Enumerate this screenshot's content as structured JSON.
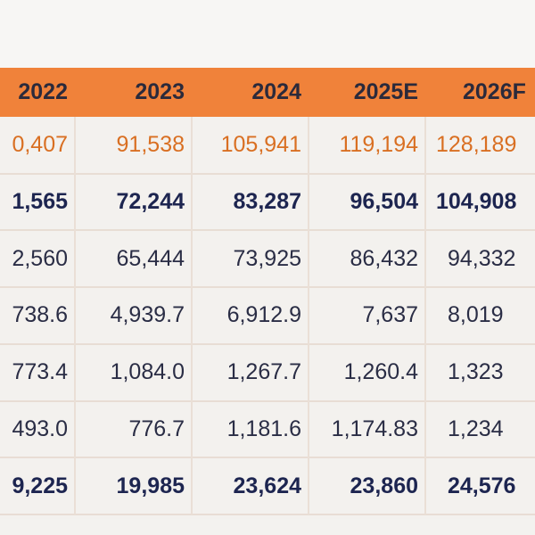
{
  "table": {
    "headers": [
      "2022",
      "2023",
      "2024",
      "2025E",
      "2026F"
    ],
    "rows": [
      {
        "style": "orange",
        "cells": [
          "0,407",
          "91,538",
          "105,941",
          "119,194",
          "128,189"
        ]
      },
      {
        "style": "navy",
        "cells": [
          "1,565",
          "72,244",
          "83,287",
          "96,504",
          "104,908"
        ]
      },
      {
        "style": "dark",
        "cells": [
          "2,560",
          "65,444",
          "73,925",
          "86,432",
          "94,332"
        ]
      },
      {
        "style": "dark",
        "cells": [
          "738.6",
          "4,939.7",
          "6,912.9",
          "7,637",
          "8,019"
        ]
      },
      {
        "style": "dark",
        "cells": [
          "773.4",
          "1,084.0",
          "1,267.7",
          "1,260.4",
          "1,323"
        ]
      },
      {
        "style": "dark",
        "cells": [
          "493.0",
          "776.7",
          "1,181.6",
          "1,174.83",
          "1,234"
        ]
      },
      {
        "style": "navy",
        "cells": [
          "9,225",
          "19,985",
          "23,624",
          "23,860",
          "24,576"
        ]
      }
    ]
  },
  "colors": {
    "header_bg": "#f0823a",
    "accent_orange": "#d96f22",
    "navy": "#1d2550",
    "text_dark": "#2a2d45"
  }
}
